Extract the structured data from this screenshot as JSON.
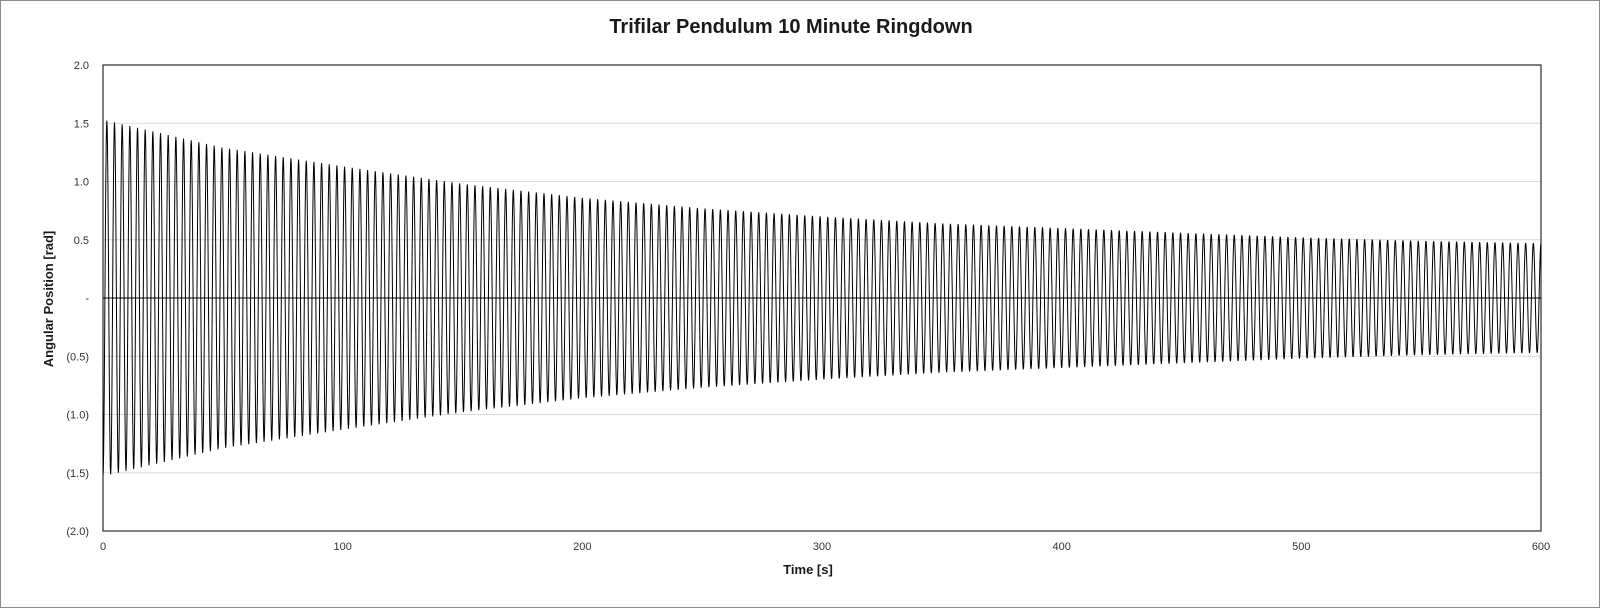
{
  "chart_data": {
    "type": "line",
    "title": "Trifilar Pendulum 10 Minute Ringdown",
    "xlabel": "Time [s]",
    "ylabel": "Angular Position [rad]",
    "xlim": [
      0,
      600
    ],
    "ylim": [
      -2.0,
      2.0
    ],
    "x_ticks": [
      0,
      100,
      200,
      300,
      400,
      500,
      600
    ],
    "x_tick_labels": [
      "0",
      "100",
      "200",
      "300",
      "400",
      "500",
      "600"
    ],
    "y_ticks": [
      2.0,
      1.5,
      1.0,
      0.5,
      0,
      -0.5,
      -1.0,
      -1.5,
      -2.0
    ],
    "y_tick_labels": [
      "2.0",
      "1.5",
      "1.0",
      "0.5",
      "-",
      "(0.5)",
      "(1.0)",
      "(1.5)",
      "(2.0)"
    ],
    "grid": "horizontal",
    "legend": "none",
    "series": [
      {
        "color": "#000000",
        "model": "damped_oscillation",
        "oscillation_period_s": 3.2,
        "envelope_points": [
          {
            "t": 0,
            "amplitude": 1.53
          },
          {
            "t": 50,
            "amplitude": 1.29
          },
          {
            "t": 100,
            "amplitude": 1.13
          },
          {
            "t": 150,
            "amplitude": 0.98
          },
          {
            "t": 200,
            "amplitude": 0.86
          },
          {
            "t": 250,
            "amplitude": 0.77
          },
          {
            "t": 300,
            "amplitude": 0.7
          },
          {
            "t": 350,
            "amplitude": 0.64
          },
          {
            "t": 400,
            "amplitude": 0.6
          },
          {
            "t": 450,
            "amplitude": 0.56
          },
          {
            "t": 500,
            "amplitude": 0.52
          },
          {
            "t": 550,
            "amplitude": 0.49
          },
          {
            "t": 600,
            "amplitude": 0.47
          }
        ]
      }
    ]
  }
}
